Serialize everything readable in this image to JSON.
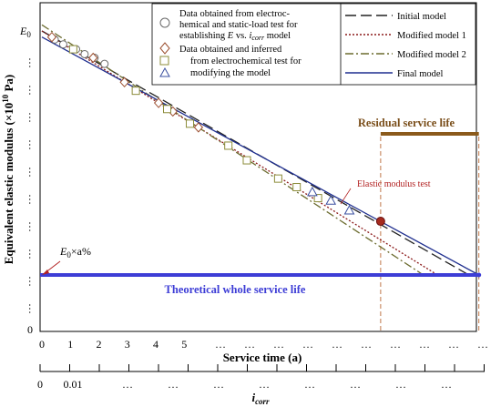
{
  "chart_data": {
    "type": "line",
    "y_top_label": "E",
    "y_top_label_sub": "0",
    "y_min_label": "0",
    "y_axis_title": "Equivalent elastic modulus (×10",
    "y_axis_title_sup": "10",
    "y_axis_title_end": " Pa)",
    "x_axis_title": "Service time (a)",
    "x_tick_labels": [
      "0",
      "1",
      "2",
      "3",
      "4",
      "5"
    ],
    "x_tick_values": [
      0,
      1,
      2,
      3,
      4,
      5
    ],
    "ellipsis": "…",
    "icorr_tick_labels": [
      "0",
      "0.01"
    ],
    "icorr_title": "i",
    "icorr_title_sub": "corr",
    "threshold_label": "E",
    "threshold_label_sub": "0",
    "threshold_label_end": "×a%",
    "residual_label": "Residual service life",
    "theoretical_label": "Theoretical whole service life",
    "test_point_label": "Elastic modulus test",
    "legend": {
      "markers": {
        "circle_text": [
          "Data obtained from electroc-",
          "hemical  and static-load test for",
          "establishing ",
          "E",
          " vs. ",
          "i",
          "corr",
          " model"
        ],
        "diamond_text": [
          "Data obtained and inferred"
        ],
        "square_text": [
          "from  electrochemical test for"
        ],
        "triangle_text": [
          "modifying the model"
        ]
      },
      "lines": [
        {
          "name": "Initial model",
          "color": "#222222",
          "style": "dash"
        },
        {
          "name": "Modified model 1",
          "color": "#8B1A1A",
          "style": "dot"
        },
        {
          "name": "Modified model 2",
          "color": "#6B6B2E",
          "style": "dashdot"
        },
        {
          "name": "Final model",
          "color": "#1F2F8F",
          "style": "solid"
        }
      ]
    },
    "series": [
      {
        "name": "Initial model",
        "x": [
          0,
          15
        ],
        "y": [
          10,
          0
        ]
      },
      {
        "name": "Modified model 1",
        "x": [
          0,
          13.9
        ],
        "y": [
          10,
          0
        ]
      },
      {
        "name": "Modified model 2",
        "x": [
          0,
          13.4
        ],
        "y": [
          10.25,
          0
        ]
      },
      {
        "name": "Final model",
        "x": [
          0,
          15.35
        ],
        "y": [
          9.75,
          0
        ]
      }
    ],
    "points": {
      "circle": [
        [
          0.45,
          9.65
        ],
        [
          0.75,
          9.45
        ],
        [
          1.2,
          9.25
        ],
        [
          1.5,
          9.05
        ],
        [
          1.85,
          8.9
        ],
        [
          2.2,
          8.65
        ]
      ],
      "diamond": [
        [
          0.35,
          9.75
        ],
        [
          1.8,
          8.9
        ],
        [
          2.9,
          7.9
        ],
        [
          4.1,
          7.05
        ],
        [
          4.6,
          6.7
        ],
        [
          5.5,
          6.05
        ]
      ],
      "square": [
        [
          1.1,
          9.25
        ],
        [
          3.3,
          7.55
        ],
        [
          4.4,
          6.8
        ],
        [
          5.2,
          6.2
        ],
        [
          6.55,
          5.3
        ],
        [
          7.2,
          4.7
        ],
        [
          8.3,
          3.95
        ],
        [
          8.95,
          3.6
        ],
        [
          9.7,
          3.15
        ]
      ],
      "triangle": [
        [
          9.5,
          3.4
        ],
        [
          10.15,
          3.05
        ],
        [
          10.8,
          2.65
        ]
      ],
      "test": [
        [
          11.9,
          2.2
        ]
      ]
    },
    "threshold_y": 0,
    "service_life_end_x": 15.35,
    "residual_start_x": 11.9,
    "colors": {
      "marker_stroke": "#8a7d5a",
      "circle_stroke": "#6a6a6a",
      "diamond_stroke": "#9b4e2e",
      "square_stroke": "#8c8c3a",
      "triangle_stroke": "#3a4fa0",
      "test_point": "#A52A1E",
      "theoretical_bar": "#3D3DD6",
      "residual_bar": "#8B5A1B",
      "guide_line": "#C0784A",
      "arrow": "#B22222"
    }
  }
}
